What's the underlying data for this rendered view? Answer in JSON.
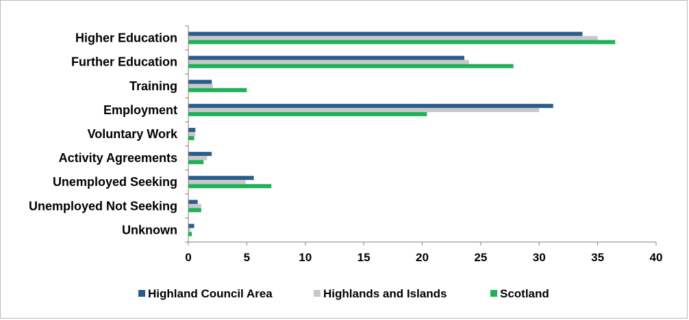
{
  "chart_data": {
    "type": "bar",
    "orientation": "horizontal",
    "categories": [
      "Higher Education",
      "Further Education",
      "Training",
      "Employment",
      "Voluntary Work",
      "Activity Agreements",
      "Unemployed Seeking",
      "Unemployed Not Seeking",
      "Unknown"
    ],
    "series": [
      {
        "name": "Highland Council Area",
        "color": "#2b5d8c",
        "values": [
          33.7,
          23.6,
          2.0,
          31.2,
          0.6,
          2.0,
          5.6,
          0.8,
          0.5
        ]
      },
      {
        "name": "Highlands and Islands",
        "color": "#c8c8c8",
        "values": [
          35.0,
          24.0,
          2.1,
          30.0,
          0.6,
          1.6,
          4.9,
          1.1,
          0.2
        ]
      },
      {
        "name": "Scotland",
        "color": "#1fb157",
        "values": [
          36.5,
          27.8,
          5.0,
          20.4,
          0.5,
          1.3,
          7.1,
          1.1,
          0.3
        ]
      }
    ],
    "xlim": [
      0,
      40
    ],
    "xticks": [
      "0",
      "5",
      "10",
      "15",
      "20",
      "25",
      "30",
      "35",
      "40"
    ],
    "title": "",
    "xlabel": "",
    "ylabel": "",
    "grid": false,
    "legend_position": "bottom"
  }
}
